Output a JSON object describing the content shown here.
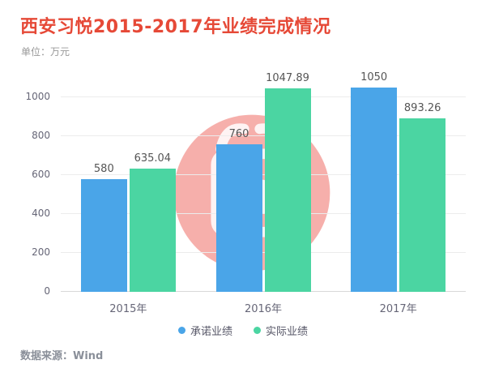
{
  "header": {
    "title": "西安习悦2015-2017年业绩完成情况",
    "subtitle": "单位：万元"
  },
  "chart_data": {
    "type": "bar",
    "title": "西安习悦2015-2017年业绩完成情况",
    "unit": "万元",
    "categories": [
      "2015年",
      "2016年",
      "2017年"
    ],
    "series": [
      {
        "name": "承诺业绩",
        "color": "#4aa5e8",
        "values": [
          580,
          760,
          1050
        ],
        "labels": [
          "580",
          "760",
          "1050"
        ]
      },
      {
        "name": "实际业绩",
        "color": "#4bd5a2",
        "values": [
          635.04,
          1047.89,
          893.26
        ],
        "labels": [
          "635.04",
          "1047.89",
          "893.26"
        ]
      }
    ],
    "yticks": [
      0,
      200,
      400,
      600,
      800,
      1000
    ],
    "ylim": [
      0,
      1100
    ],
    "grid": true,
    "legend_position": "bottom",
    "watermark_color": "#ee5f58"
  },
  "footer": {
    "source": "数据来源：Wind"
  }
}
